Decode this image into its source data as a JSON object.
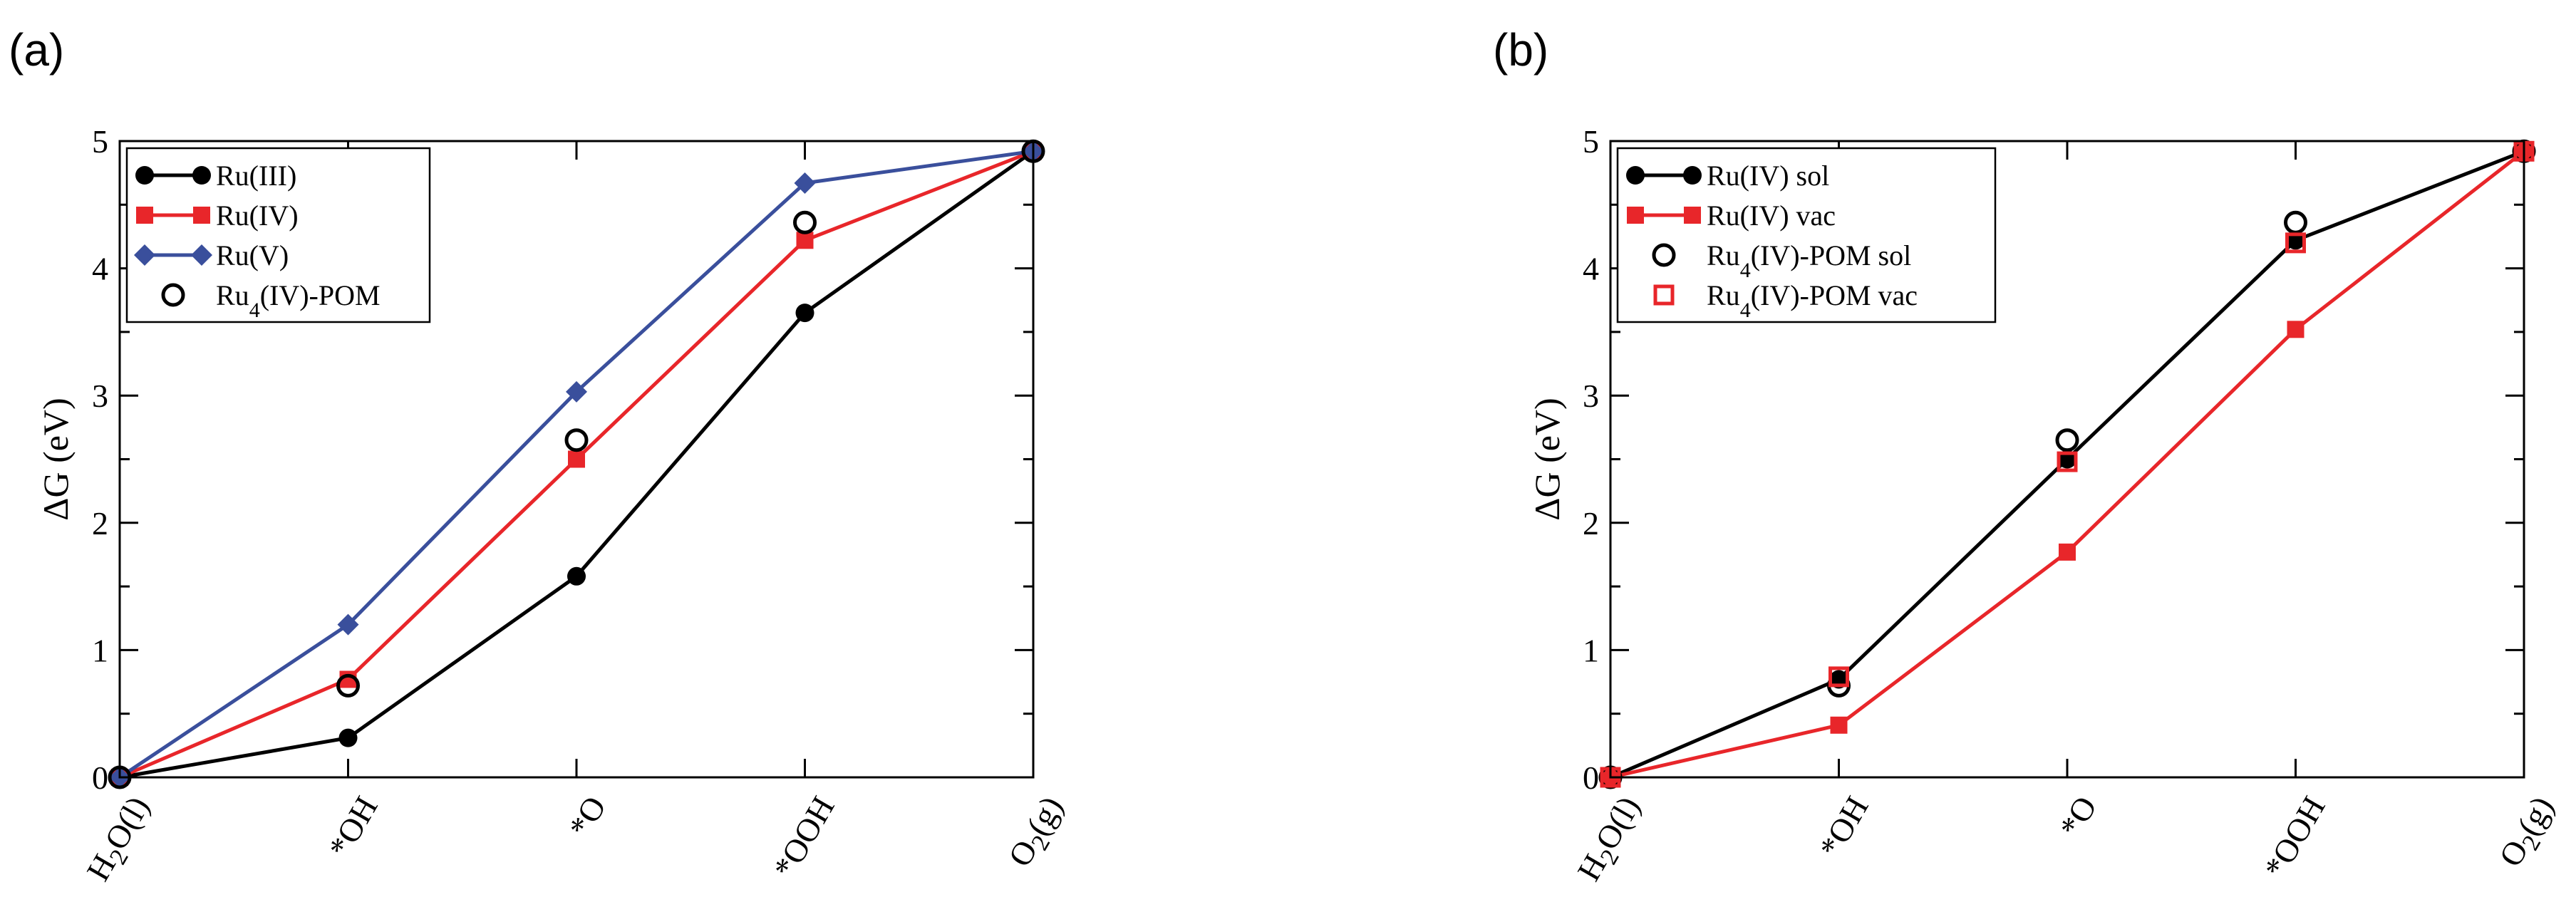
{
  "chart_data": [
    {
      "panel": "(a)",
      "type": "line",
      "ylabel": "ΔG (eV)",
      "xlabel": "",
      "ylim": [
        0,
        5
      ],
      "yticks": [
        0,
        1,
        2,
        3,
        4,
        5
      ],
      "categories": [
        {
          "base": "H",
          "sub": "2",
          "rest": "O(l)"
        },
        {
          "base": "*OH",
          "sub": "",
          "rest": ""
        },
        {
          "base": "*O",
          "sub": "",
          "rest": ""
        },
        {
          "base": "*OOH",
          "sub": "",
          "rest": ""
        },
        {
          "base": "O",
          "sub": "2",
          "rest": "(g)"
        }
      ],
      "legend_position": "top-left",
      "series": [
        {
          "name": "Ru(III)",
          "base": "Ru(III)",
          "sub": "",
          "rest": "",
          "color": "#000000",
          "marker": "circle",
          "line": true,
          "values": [
            0,
            0.31,
            1.58,
            3.65,
            4.92
          ]
        },
        {
          "name": "Ru(IV)",
          "base": "Ru(IV)",
          "sub": "",
          "rest": "",
          "color": "#e8262a",
          "marker": "square",
          "line": true,
          "values": [
            0,
            0.77,
            2.5,
            4.22,
            4.92
          ]
        },
        {
          "name": "Ru(V)",
          "base": "Ru(V)",
          "sub": "",
          "rest": "",
          "color": "#3a4f9c",
          "marker": "diamond",
          "line": true,
          "values": [
            0,
            1.2,
            3.03,
            4.67,
            4.92
          ]
        },
        {
          "name": "Ru4(IV)-POM",
          "base": "Ru",
          "sub": "4",
          "rest": "(IV)-POM",
          "color": "#000000",
          "marker": "open-circle",
          "line": false,
          "values": [
            0,
            0.72,
            2.65,
            4.36,
            4.92
          ]
        }
      ]
    },
    {
      "panel": "(b)",
      "type": "line",
      "ylabel": "ΔG (eV)",
      "xlabel": "",
      "ylim": [
        0,
        5
      ],
      "yticks": [
        0,
        1,
        2,
        3,
        4,
        5
      ],
      "categories": [
        {
          "base": "H",
          "sub": "2",
          "rest": "O(l)"
        },
        {
          "base": "*OH",
          "sub": "",
          "rest": ""
        },
        {
          "base": "*O",
          "sub": "",
          "rest": ""
        },
        {
          "base": "*OOH",
          "sub": "",
          "rest": ""
        },
        {
          "base": "O",
          "sub": "2",
          "rest": "(g)"
        }
      ],
      "legend_position": "top-left",
      "series": [
        {
          "name": "Ru(IV) sol",
          "base": "Ru(IV) sol",
          "sub": "",
          "rest": "",
          "color": "#000000",
          "marker": "circle",
          "line": true,
          "values": [
            0,
            0.77,
            2.5,
            4.22,
            4.92
          ]
        },
        {
          "name": "Ru(IV) vac",
          "base": "Ru(IV) vac",
          "sub": "",
          "rest": "",
          "color": "#e8262a",
          "marker": "square",
          "line": true,
          "values": [
            0,
            0.41,
            1.77,
            3.52,
            4.92
          ]
        },
        {
          "name": "Ru4(IV)-POM sol",
          "base": "Ru",
          "sub": "4",
          "rest": "(IV)-POM sol",
          "color": "#000000",
          "marker": "open-circle",
          "line": false,
          "values": [
            0,
            0.72,
            2.65,
            4.36,
            4.92
          ]
        },
        {
          "name": "Ru4(IV)-POM vac",
          "base": "Ru",
          "sub": "4",
          "rest": "(IV)-POM vac",
          "color": "#e8262a",
          "marker": "open-square",
          "line": false,
          "values": [
            0,
            0.79,
            2.48,
            4.2,
            4.92
          ]
        }
      ]
    }
  ]
}
